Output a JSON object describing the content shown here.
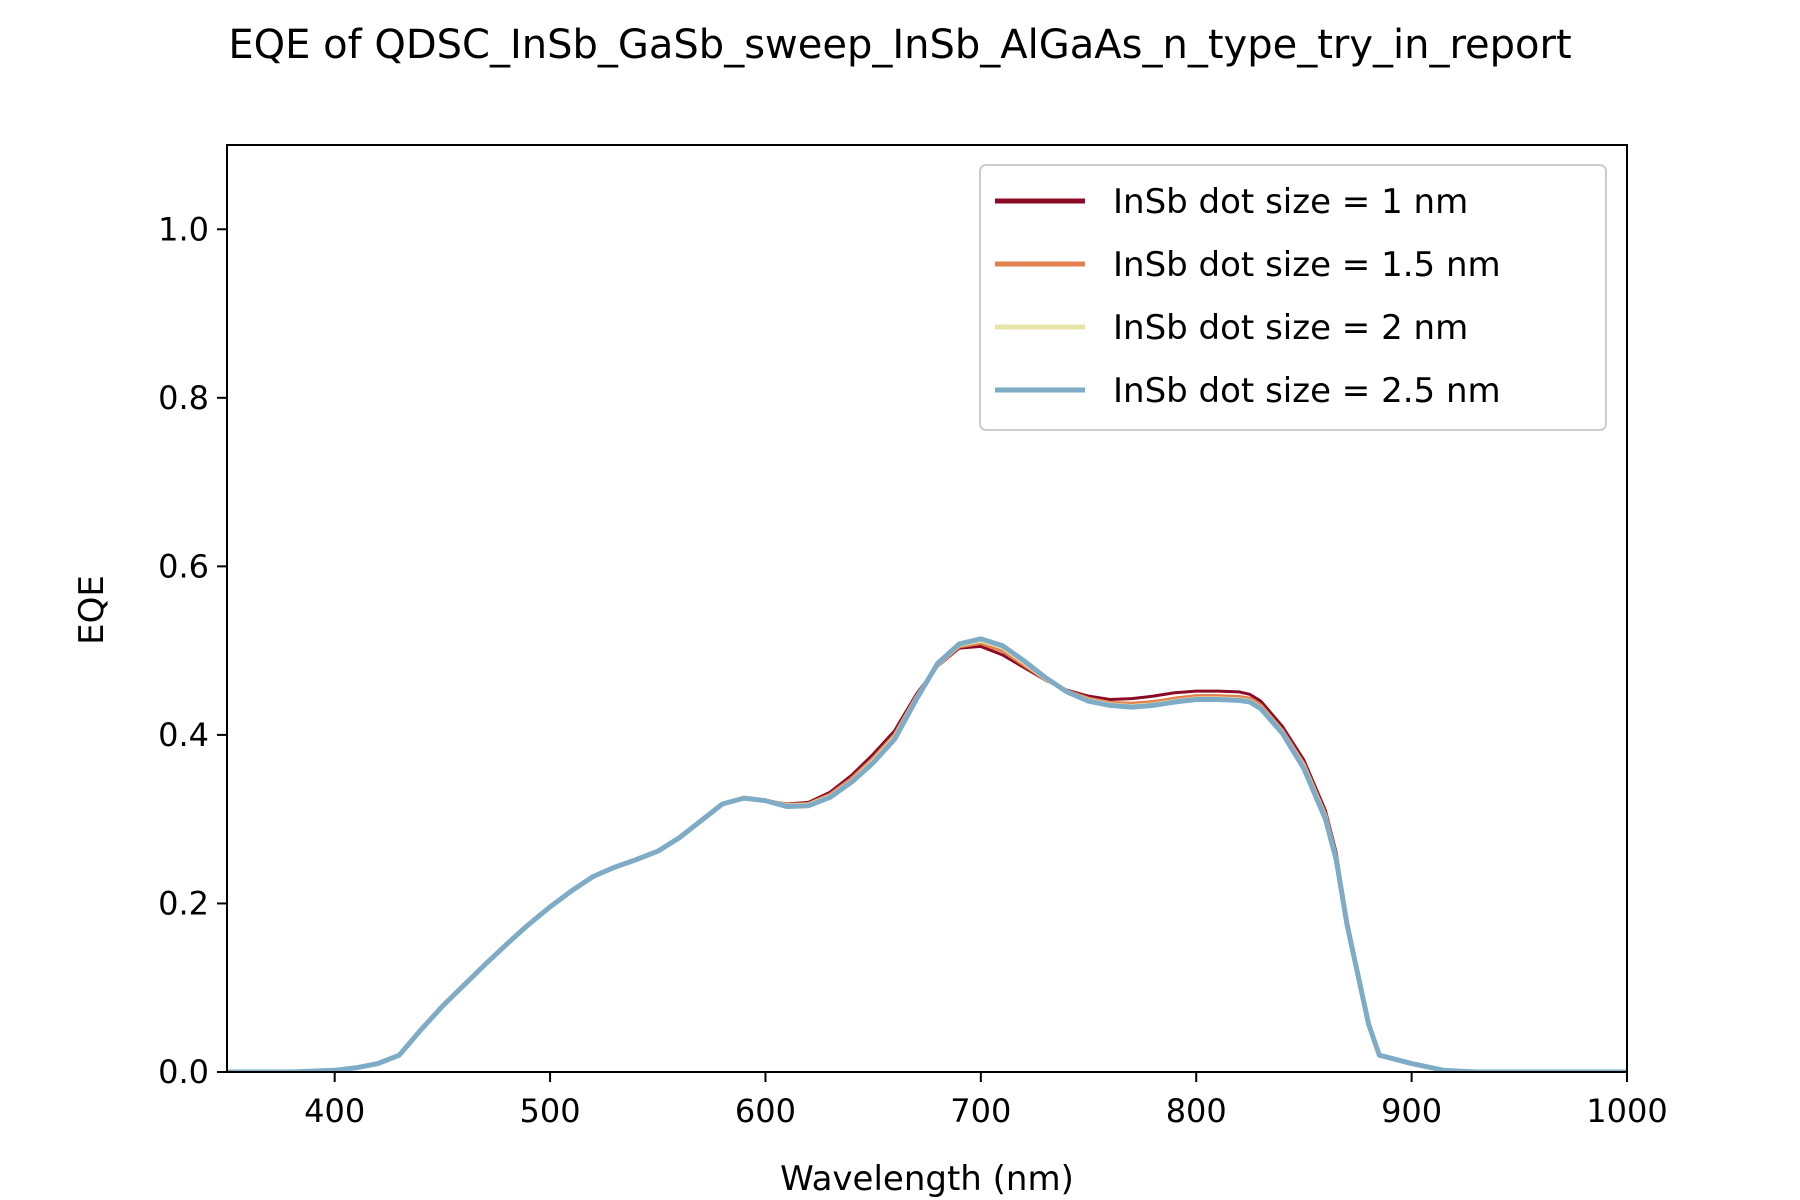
{
  "chart_data": {
    "type": "line",
    "title": "EQE of  QDSC_InSb_GaSb_sweep_InSb_AlGaAs_n_type_try_in_report",
    "xlabel": "Wavelength (nm)",
    "ylabel": "EQE",
    "xlim": [
      350,
      1000
    ],
    "ylim": [
      0,
      1.1
    ],
    "xticks": [
      400,
      500,
      600,
      700,
      800,
      900,
      1000
    ],
    "xtick_labels": [
      "400",
      "500",
      "600",
      "700",
      "800",
      "900",
      "1000"
    ],
    "yticks": [
      0.0,
      0.2,
      0.4,
      0.6,
      0.8,
      1.0
    ],
    "ytick_labels": [
      "0.0",
      "0.2",
      "0.4",
      "0.6",
      "0.8",
      "1.0"
    ],
    "grid": false,
    "legend_position": "top-right",
    "x": [
      350,
      380,
      400,
      410,
      420,
      430,
      440,
      450,
      460,
      470,
      480,
      490,
      500,
      510,
      520,
      530,
      540,
      550,
      560,
      570,
      580,
      590,
      600,
      610,
      620,
      630,
      640,
      650,
      660,
      670,
      680,
      690,
      700,
      710,
      720,
      730,
      740,
      750,
      760,
      770,
      780,
      790,
      800,
      810,
      820,
      825,
      830,
      840,
      850,
      860,
      865,
      870,
      880,
      885,
      900,
      915,
      930,
      960,
      1000
    ],
    "series": [
      {
        "name": "InSb dot size = 1 nm",
        "color": "#8b0a26",
        "values": [
          0.0,
          0.0,
          0.002,
          0.005,
          0.01,
          0.02,
          0.05,
          0.078,
          0.103,
          0.128,
          0.152,
          0.175,
          0.196,
          0.215,
          0.232,
          0.243,
          0.252,
          0.262,
          0.278,
          0.298,
          0.318,
          0.325,
          0.322,
          0.318,
          0.32,
          0.332,
          0.352,
          0.377,
          0.405,
          0.448,
          0.482,
          0.503,
          0.505,
          0.495,
          0.48,
          0.465,
          0.453,
          0.446,
          0.442,
          0.443,
          0.446,
          0.45,
          0.452,
          0.452,
          0.451,
          0.448,
          0.44,
          0.41,
          0.37,
          0.31,
          0.26,
          0.18,
          0.06,
          0.02,
          0.01,
          0.002,
          0.0,
          0.0,
          0.0
        ]
      },
      {
        "name": "InSb dot size = 1.5 nm",
        "color": "#e3804d",
        "values": [
          0.0,
          0.0,
          0.002,
          0.005,
          0.01,
          0.02,
          0.05,
          0.078,
          0.103,
          0.128,
          0.152,
          0.175,
          0.196,
          0.215,
          0.232,
          0.243,
          0.252,
          0.262,
          0.278,
          0.298,
          0.318,
          0.325,
          0.322,
          0.317,
          0.318,
          0.329,
          0.348,
          0.372,
          0.4,
          0.445,
          0.483,
          0.505,
          0.509,
          0.5,
          0.483,
          0.466,
          0.452,
          0.443,
          0.438,
          0.437,
          0.439,
          0.443,
          0.446,
          0.446,
          0.445,
          0.443,
          0.435,
          0.405,
          0.365,
          0.305,
          0.255,
          0.178,
          0.058,
          0.02,
          0.01,
          0.002,
          0.0,
          0.0,
          0.0
        ]
      },
      {
        "name": "InSb dot size = 2 nm",
        "color": "#e6e4a8",
        "values": [
          0.0,
          0.0,
          0.002,
          0.005,
          0.01,
          0.02,
          0.05,
          0.078,
          0.103,
          0.128,
          0.152,
          0.175,
          0.196,
          0.215,
          0.232,
          0.243,
          0.252,
          0.262,
          0.278,
          0.298,
          0.318,
          0.325,
          0.322,
          0.316,
          0.317,
          0.327,
          0.345,
          0.369,
          0.397,
          0.443,
          0.484,
          0.507,
          0.512,
          0.504,
          0.486,
          0.467,
          0.451,
          0.441,
          0.436,
          0.434,
          0.436,
          0.44,
          0.443,
          0.443,
          0.442,
          0.44,
          0.432,
          0.403,
          0.362,
          0.302,
          0.253,
          0.176,
          0.058,
          0.02,
          0.01,
          0.002,
          0.0,
          0.0,
          0.0
        ]
      },
      {
        "name": "InSb dot size = 2.5 nm",
        "color": "#7eabc6",
        "values": [
          0.0,
          0.0,
          0.002,
          0.005,
          0.01,
          0.02,
          0.05,
          0.078,
          0.103,
          0.128,
          0.152,
          0.175,
          0.196,
          0.215,
          0.232,
          0.243,
          0.252,
          0.262,
          0.278,
          0.298,
          0.318,
          0.325,
          0.322,
          0.315,
          0.316,
          0.326,
          0.344,
          0.367,
          0.395,
          0.442,
          0.485,
          0.508,
          0.514,
          0.506,
          0.488,
          0.468,
          0.451,
          0.44,
          0.435,
          0.433,
          0.435,
          0.439,
          0.442,
          0.442,
          0.441,
          0.439,
          0.431,
          0.402,
          0.36,
          0.3,
          0.252,
          0.175,
          0.057,
          0.02,
          0.01,
          0.002,
          0.0,
          0.0,
          0.0
        ]
      }
    ]
  }
}
